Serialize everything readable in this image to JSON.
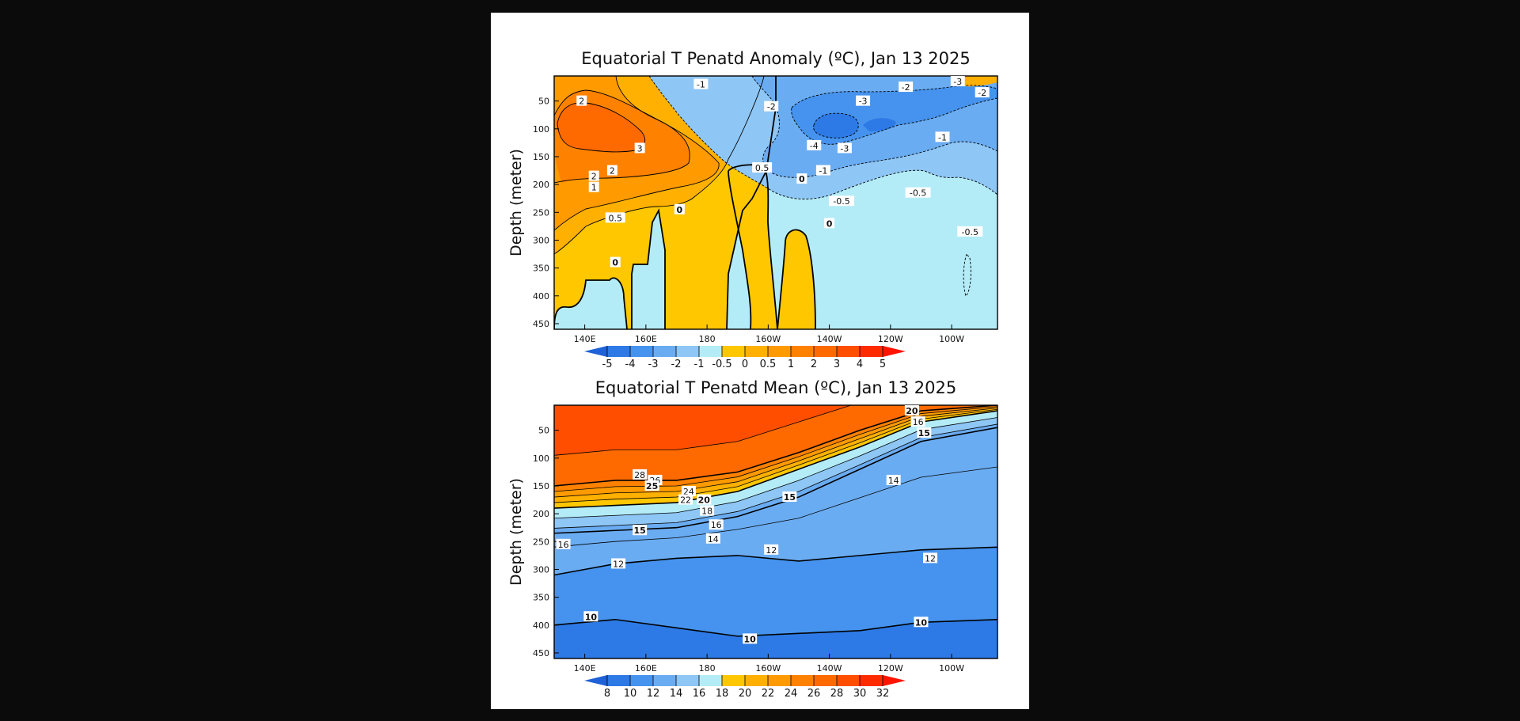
{
  "chart_data": [
    {
      "type": "heatmap",
      "subtype": "filled contour",
      "title": "Equatorial T Penatd Anomaly (ºC), Jan 13 2025",
      "ylabel": "Depth (meter)",
      "xlabel": "",
      "x_ticks": [
        "140E",
        "160E",
        "180",
        "160W",
        "140W",
        "120W",
        "100W"
      ],
      "x_tick_values": [
        140,
        160,
        180,
        200,
        220,
        240,
        260
      ],
      "xlim": [
        130,
        275
      ],
      "y_ticks": [
        50,
        100,
        150,
        200,
        250,
        300,
        350,
        400,
        450
      ],
      "ylim": [
        460,
        5
      ],
      "y_inverted": true,
      "colorbar": {
        "levels": [
          -5,
          -4,
          -3,
          -2,
          -1,
          -0.5,
          0,
          0.5,
          1,
          2,
          3,
          4,
          5
        ],
        "labels": [
          "-5",
          "-4",
          "-3",
          "-2",
          "-1",
          "-0.5",
          "0",
          "0.5",
          "1",
          "2",
          "3",
          "4",
          "5"
        ],
        "colors": [
          "#1f61d6",
          "#2d7ae6",
          "#4593ee",
          "#6aacf2",
          "#8ec6f5",
          "#b3ecf7",
          "#ffc700",
          "#ffb000",
          "#ff9a00",
          "#ff8100",
          "#ff6a00",
          "#ff4e00",
          "#ff2b00",
          "#ff1400"
        ]
      },
      "regions": [
        {
          "level": "-1 to -0.5",
          "x": [
            168,
            275
          ],
          "depth": [
            5,
            170
          ]
        },
        {
          "level": "-2 to -1",
          "x": [
            195,
            275
          ],
          "depth": [
            5,
            150
          ]
        },
        {
          "level": "-3 to -2",
          "x": [
            210,
            272
          ],
          "depth": [
            40,
            130
          ]
        },
        {
          "level": "-4 to -3",
          "x": [
            215,
            240
          ],
          "depth": [
            80,
            120
          ]
        },
        {
          "level": "0.5 to 1",
          "x": [
            130,
            205
          ],
          "depth": [
            5,
            240
          ]
        },
        {
          "level": "1 to 2",
          "x": [
            130,
            192
          ],
          "depth": [
            5,
            215
          ]
        },
        {
          "level": "2 to 3",
          "x": [
            130,
            183
          ],
          "depth": [
            60,
            195
          ]
        },
        {
          "level": "3 to 4",
          "x": [
            133,
            165
          ],
          "depth": [
            75,
            155
          ]
        },
        {
          "level": "0 to 0.5",
          "x": [
            130,
            275
          ],
          "depth": [
            5,
            460
          ]
        },
        {
          "level": "-0.5 to 0",
          "x": [
            130,
            275
          ],
          "depth": [
            5,
            460
          ]
        }
      ],
      "contour_labels": [
        {
          "text": "-1",
          "x": 178,
          "depth": 20
        },
        {
          "text": "-2",
          "x": 201,
          "depth": 60
        },
        {
          "text": "-3",
          "x": 231,
          "depth": 50
        },
        {
          "text": "-2",
          "x": 245,
          "depth": 25
        },
        {
          "text": "-3",
          "x": 262,
          "depth": 15
        },
        {
          "text": "-2",
          "x": 270,
          "depth": 35
        },
        {
          "text": "-1",
          "x": 257,
          "depth": 115
        },
        {
          "text": "-4",
          "x": 215,
          "depth": 130
        },
        {
          "text": "-3",
          "x": 225,
          "depth": 135
        },
        {
          "text": "-1",
          "x": 218,
          "depth": 175
        },
        {
          "text": "-0.5",
          "x": 224,
          "depth": 230
        },
        {
          "text": "-0.5",
          "x": 249,
          "depth": 215
        },
        {
          "text": "-0.5",
          "x": 266,
          "depth": 285
        },
        {
          "text": "0",
          "x": 211,
          "depth": 190
        },
        {
          "text": "0",
          "x": 220,
          "depth": 270
        },
        {
          "text": "0",
          "x": 171,
          "depth": 245
        },
        {
          "text": "0",
          "x": 150,
          "depth": 340
        },
        {
          "text": "0.5",
          "x": 150,
          "depth": 260
        },
        {
          "text": "0.5",
          "x": 198,
          "depth": 170
        },
        {
          "text": "1",
          "x": 143,
          "depth": 205
        },
        {
          "text": "2",
          "x": 143,
          "depth": 185
        },
        {
          "text": "2",
          "x": 149,
          "depth": 175
        },
        {
          "text": "2",
          "x": 139,
          "depth": 50
        },
        {
          "text": "3",
          "x": 158,
          "depth": 135
        }
      ]
    },
    {
      "type": "heatmap",
      "subtype": "filled contour",
      "title": "Equatorial T Penatd Mean (ºC), Jan 13 2025",
      "ylabel": "Depth (meter)",
      "xlabel": "",
      "x_ticks": [
        "140E",
        "160E",
        "180",
        "160W",
        "140W",
        "120W",
        "100W"
      ],
      "x_tick_values": [
        140,
        160,
        180,
        200,
        220,
        240,
        260
      ],
      "xlim": [
        130,
        275
      ],
      "y_ticks": [
        50,
        100,
        150,
        200,
        250,
        300,
        350,
        400,
        450
      ],
      "ylim": [
        460,
        5
      ],
      "y_inverted": true,
      "colorbar": {
        "levels": [
          8,
          10,
          12,
          14,
          16,
          18,
          20,
          22,
          24,
          26,
          28,
          30,
          32
        ],
        "labels": [
          "8",
          "10",
          "12",
          "14",
          "16",
          "18",
          "20",
          "22",
          "24",
          "26",
          "28",
          "30",
          "32"
        ],
        "colors": [
          "#1f61d6",
          "#2d7ae6",
          "#4593ee",
          "#6aacf2",
          "#8ec6f5",
          "#b3ecf7",
          "#ffc700",
          "#ffb000",
          "#ff9a00",
          "#ff8100",
          "#ff6a00",
          "#ff4e00",
          "#ff2b00",
          "#ff1400"
        ]
      },
      "isotherm_depths": {
        "x": [
          130,
          150,
          170,
          190,
          210,
          230,
          250,
          275
        ],
        "depth_28": [
          150,
          140,
          140,
          125,
          90,
          50,
          15,
          5
        ],
        "depth_20": [
          190,
          185,
          180,
          160,
          120,
          80,
          35,
          15
        ],
        "depth_15": [
          235,
          230,
          225,
          205,
          170,
          120,
          70,
          45
        ],
        "depth_12": [
          310,
          290,
          280,
          275,
          285,
          275,
          265,
          260
        ],
        "depth_10": [
          400,
          390,
          405,
          420,
          415,
          410,
          395,
          390
        ]
      },
      "contour_labels": [
        {
          "text": "28",
          "x": 158,
          "depth": 130
        },
        {
          "text": "26",
          "x": 163,
          "depth": 140
        },
        {
          "text": "25",
          "x": 162,
          "depth": 150
        },
        {
          "text": "24",
          "x": 174,
          "depth": 160
        },
        {
          "text": "22",
          "x": 173,
          "depth": 175
        },
        {
          "text": "20",
          "x": 179,
          "depth": 175
        },
        {
          "text": "18",
          "x": 180,
          "depth": 195
        },
        {
          "text": "16",
          "x": 183,
          "depth": 220
        },
        {
          "text": "14",
          "x": 182,
          "depth": 245
        },
        {
          "text": "15",
          "x": 158,
          "depth": 230
        },
        {
          "text": "16",
          "x": 133,
          "depth": 255
        },
        {
          "text": "12",
          "x": 151,
          "depth": 290
        },
        {
          "text": "12",
          "x": 201,
          "depth": 265
        },
        {
          "text": "12",
          "x": 253,
          "depth": 280
        },
        {
          "text": "15",
          "x": 207,
          "depth": 170
        },
        {
          "text": "14",
          "x": 241,
          "depth": 140
        },
        {
          "text": "15",
          "x": 251,
          "depth": 55
        },
        {
          "text": "16",
          "x": 249,
          "depth": 35
        },
        {
          "text": "20",
          "x": 247,
          "depth": 15
        },
        {
          "text": "10",
          "x": 142,
          "depth": 385
        },
        {
          "text": "10",
          "x": 194,
          "depth": 425
        },
        {
          "text": "10",
          "x": 250,
          "depth": 395
        }
      ]
    }
  ]
}
